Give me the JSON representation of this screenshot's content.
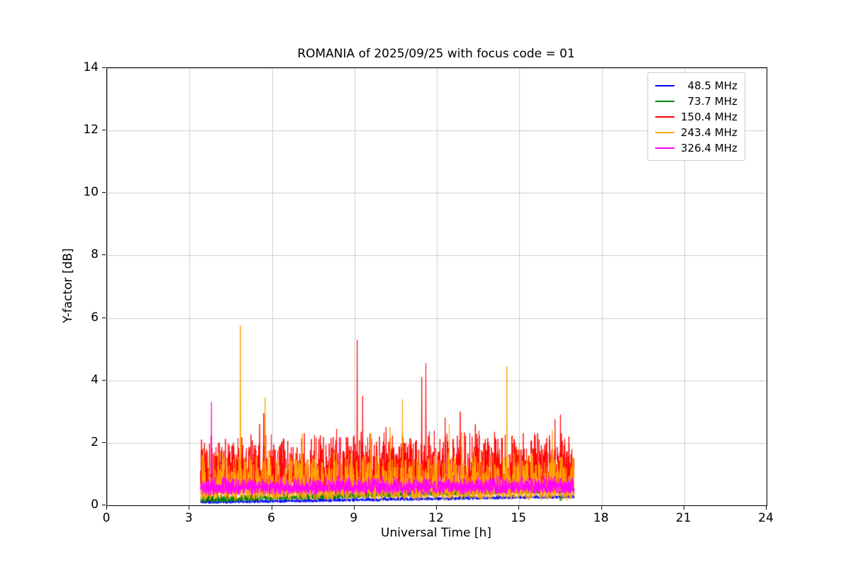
{
  "chart_data": {
    "type": "line",
    "title": "ROMANIA of 2025/09/25 with focus code = 01",
    "xlabel": "Universal Time [h]",
    "ylabel": "Y-factor [dB]",
    "xlim": [
      0,
      24
    ],
    "ylim": [
      0,
      14
    ],
    "xticks": [
      0,
      3,
      6,
      9,
      12,
      15,
      18,
      21,
      24
    ],
    "yticks": [
      0,
      2,
      4,
      6,
      8,
      10,
      12,
      14
    ],
    "grid": true,
    "grid_color": "#cccccc",
    "legend_position": "upper right",
    "x_data_range": [
      3.4,
      17.0
    ],
    "sample_step_h": 0.006,
    "series": [
      {
        "label": "  48.5 MHz",
        "color": "#0000ff",
        "model": {
          "base": 0.04,
          "trend": 0.18,
          "jitter": 0.08,
          "spike_amp": 0.08,
          "spike_pow": 3
        },
        "spikes": []
      },
      {
        "label": "  73.7 MHz",
        "color": "#008000",
        "model": {
          "base": 0.08,
          "trend": 0.32,
          "jitter": 0.12,
          "spike_amp": 0.18,
          "spike_pow": 3
        },
        "spikes": [
          [
            16.5,
            0.75
          ]
        ]
      },
      {
        "label": "150.4 MHz",
        "color": "#ff0000",
        "model": {
          "base": 0.3,
          "trend": 0.1,
          "jitter": 0.55,
          "spike_amp": 1.55,
          "spike_pow": 2.5
        },
        "spikes": [
          [
            5.55,
            2.6
          ],
          [
            5.7,
            2.95
          ],
          [
            8.35,
            2.45
          ],
          [
            9.1,
            5.3
          ],
          [
            9.3,
            3.5
          ],
          [
            10.15,
            2.5
          ],
          [
            11.45,
            4.1
          ],
          [
            11.6,
            4.55
          ],
          [
            12.3,
            2.8
          ],
          [
            12.85,
            3.0
          ],
          [
            13.4,
            2.6
          ],
          [
            14.1,
            2.35
          ],
          [
            15.55,
            2.3
          ],
          [
            16.3,
            2.75
          ],
          [
            16.5,
            2.9
          ]
        ]
      },
      {
        "label": "243.4 MHz",
        "color": "#ffa500",
        "model": {
          "base": 0.15,
          "trend": 0.0,
          "jitter": 0.4,
          "spike_amp": 1.25,
          "spike_pow": 3
        },
        "spikes": [
          [
            3.5,
            1.75
          ],
          [
            4.85,
            5.75
          ],
          [
            5.75,
            3.45
          ],
          [
            7.1,
            2.3
          ],
          [
            9.6,
            2.3
          ],
          [
            10.3,
            2.5
          ],
          [
            10.75,
            3.4
          ],
          [
            12.45,
            2.6
          ],
          [
            12.9,
            2.35
          ],
          [
            14.55,
            4.45
          ],
          [
            15.0,
            2.0
          ],
          [
            16.2,
            2.4
          ]
        ]
      },
      {
        "label": "326.4 MHz",
        "color": "#ff00ff",
        "model": {
          "base": 0.3,
          "trend": 0.05,
          "jitter": 0.35,
          "spike_amp": 0.3,
          "spike_pow": 2
        },
        "spikes": [
          [
            3.8,
            3.3
          ],
          [
            8.45,
            2.2
          ]
        ]
      }
    ]
  },
  "layout_values": {
    "background": "#ffffff"
  }
}
